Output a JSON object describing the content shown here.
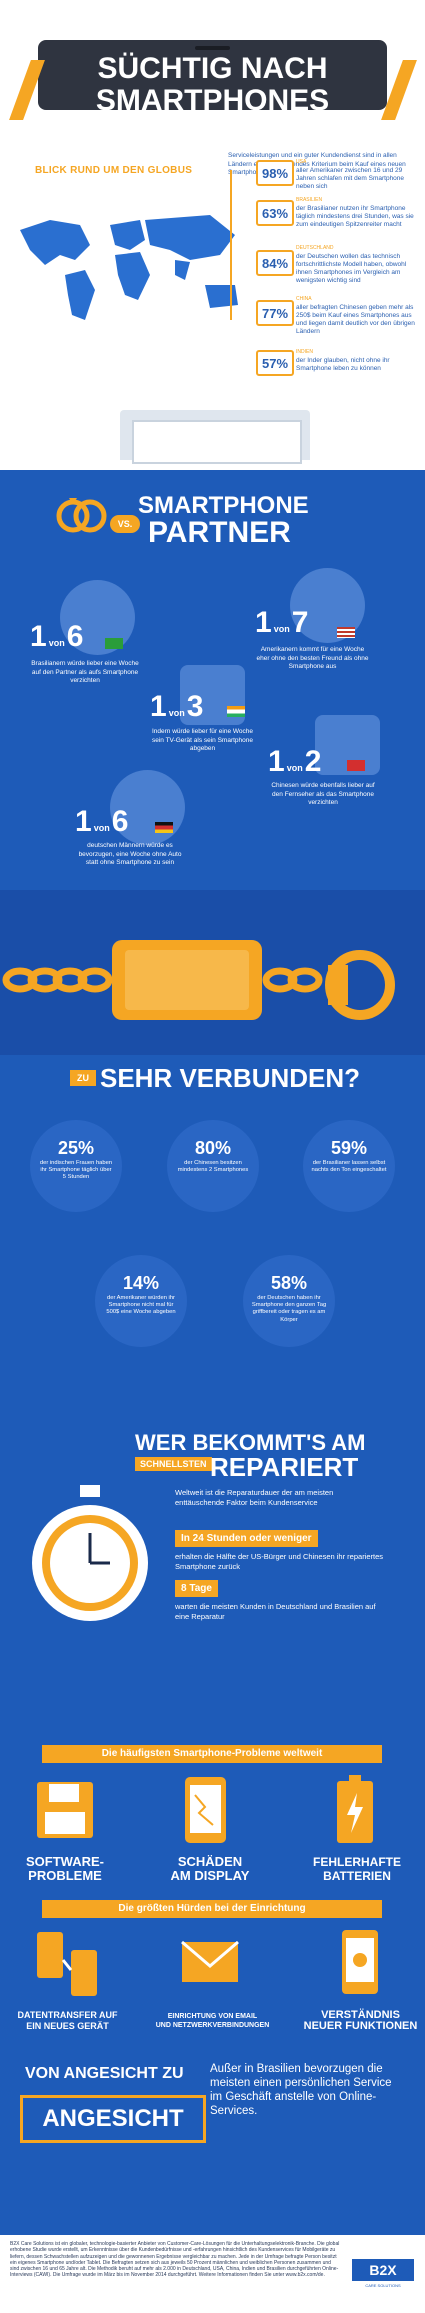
{
  "header": {
    "title_line1": "SÜCHTIG NACH",
    "title_line2": "SMARTPHONES"
  },
  "globe": {
    "heading": "BLICK RUND UM DEN GLOBUS",
    "intro": "Serviceleistungen und ein guter Kundendienst sind in allen Ländern ein entscheidendes Kriterium beim Kauf eines neuen Smartphones",
    "stats": [
      {
        "country": "USA",
        "pct": "98%",
        "text": "aller Amerikaner zwischen 16 und 29 Jahren schlafen mit dem Smartphone neben sich"
      },
      {
        "country": "Brasilien",
        "pct": "63%",
        "text": "der Brasilianer nutzen ihr Smartphone täglich mindestens drei Stunden, was sie zum eindeutigen Spitzenreiter macht"
      },
      {
        "country": "Deutschland",
        "pct": "84%",
        "text": "der Deutschen wollen das technisch fortschrittlichste Modell haben, obwohl ihnen Smartphones im Vergleich am wenigsten wichtig sind"
      },
      {
        "country": "China",
        "pct": "77%",
        "text": "aller befragten Chinesen geben mehr als 250$ beim Kauf eines Smartphones aus und liegen damit deutlich vor den übrigen Ländern"
      },
      {
        "country": "Indien",
        "pct": "57%",
        "text": "der Inder glauben, nicht ohne ihr Smartphone leben zu können"
      }
    ]
  },
  "partner": {
    "heading1": "SMARTPHONE",
    "vs": "VS.",
    "heading2": "PARTNER",
    "von": "von",
    "items": [
      {
        "a": "1",
        "b": "6",
        "text": "Brasilianern würde lieber eine Woche auf den Partner als aufs Smartphone verzichten"
      },
      {
        "a": "1",
        "b": "7",
        "text": "Amerikanern kommt für eine Woche eher ohne den besten Freund als ohne Smartphone aus"
      },
      {
        "a": "1",
        "b": "3",
        "text": "Indern würde lieber für eine Woche sein TV-Gerät als sein Smartphone abgeben"
      },
      {
        "a": "1",
        "b": "2",
        "text": "Chinesen würde ebenfalls lieber auf den Fernseher als das Smartphone verzichten"
      },
      {
        "a": "1",
        "b": "6",
        "text": "deutschen Männern würde es bevorzugen, eine Woche ohne Auto statt ohne Smartphone zu sein"
      }
    ]
  },
  "verbunden": {
    "zu": "ZU",
    "heading": "SEHR VERBUNDEN?",
    "items": [
      {
        "pct": "25%",
        "text": "der indischen Frauen haben ihr Smartphone täglich über 5 Stunden"
      },
      {
        "pct": "80%",
        "text": "der Chinesen besitzen mindestens 2 Smartphones"
      },
      {
        "pct": "59%",
        "text": "der Brasilianer lassen selbst nachts den Ton eingeschaltet"
      },
      {
        "pct": "14%",
        "text": "der Amerikaner würden ihr Smartphone nicht mal für 500$ eine Woche abgeben"
      },
      {
        "pct": "58%",
        "text": "der Deutschen haben ihr Smartphone den ganzen Tag griffbereit oder tragen es am Körper"
      }
    ]
  },
  "repair": {
    "line1": "WER BEKOMMT'S AM",
    "schnellsten": "SCHNELLSTEN",
    "line2": "REPARIERT",
    "intro": "Weltweit ist die Reparaturdauer der am meisten enttäuschende Faktor beim Kundenservice",
    "box1": "In 24 Stunden oder weniger",
    "text1": "erhalten die Hälfte der US-Bürger und Chinesen ihr repariertes Smartphone zurück",
    "box2": "8 Tage",
    "text2": "warten die meisten Kunden in Deutschland und Brasilien auf eine Reparatur"
  },
  "problems": {
    "bar": "Die häufigsten Smartphone-Probleme weltweit",
    "items": [
      {
        "l1": "SOFTWARE-",
        "l2": "PROBLEME"
      },
      {
        "l1": "SCHÄDEN",
        "l2": "AM DISPLAY"
      },
      {
        "l1": "FEHLERHAFTE",
        "l2": "BATTERIEN"
      }
    ],
    "bar2": "Die größten Hürden bei der Einrichtung",
    "hurdles": [
      {
        "l1": "DATENTRANSFER AUF",
        "l2": "EIN NEUES GERÄT"
      },
      {
        "l1": "EINRICHTUNG VON EMAIL",
        "l2": "UND NETZWERKVERBINDUNGEN"
      },
      {
        "l1": "VERSTÄNDNIS",
        "l2": "NEUER FUNKTIONEN"
      }
    ]
  },
  "face": {
    "line1": "VON ANGESICHT ZU",
    "line2": "ANGESICHT",
    "text": "Außer in Brasilien bevorzugen die meisten einen persönlichen Service im Geschäft anstelle von Online-Services."
  },
  "footer": {
    "text": "B2X Care Solutions ist ein globaler, technologie-basierter Anbieter von Customer-Care-Lösungen für die Unterhaltungselektronik-Branche. Die global erhobene Studie wurde erstellt, um Erkenntnisse über die Kundenbedürfnisse und -erfahrungen hinsichtlich des Kundenservices für Mobilgeräte zu liefern, dessen Schwachstellen aufzuzeigen und die gewonnenen Ergebnisse vergleichbar zu machen. Jede in der Umfrage befragte Person besitzt ein eigenes Smartphone und/oder Tablet. Die Befragten setzen sich aus jeweils 50 Prozent männlichen und weiblichen Personen zusammen und sind zwischen 16 und 65 Jahre alt. Die Methodik beruht auf mehr als 2.000 in Deutschland, USA, China, Indien und Brasilien durchgeführten Online-Interviews (CAWI). Die Umfrage wurde im März bis im November 2014 durchgeführt. Weitere Informationen finden Sie unter www.b2x.com/de.",
    "logo": "B2X",
    "logo_sub": "CARE SOLUTIONS"
  },
  "colors": {
    "blue": "#1e5bb8",
    "orange": "#f5a623",
    "navy": "#1a2a4a"
  }
}
